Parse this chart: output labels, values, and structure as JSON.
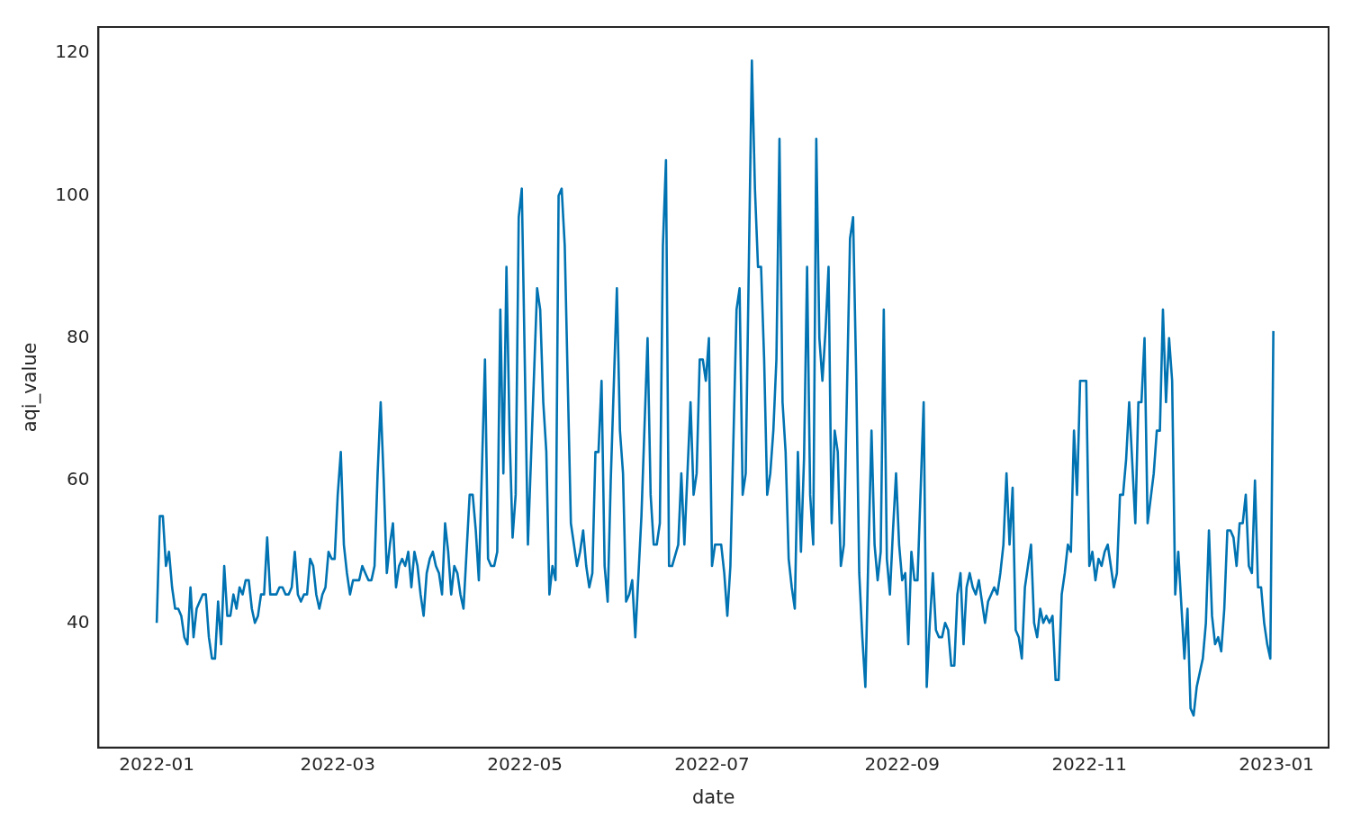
{
  "chart_data": {
    "type": "line",
    "xlabel": "date",
    "ylabel": "aqi_value",
    "x": [
      "2022-01-01",
      "2022-01-02",
      "2022-01-03",
      "2022-01-04",
      "2022-01-05",
      "2022-01-06",
      "2022-01-07",
      "2022-01-08",
      "2022-01-09",
      "2022-01-10",
      "2022-01-11",
      "2022-01-12",
      "2022-01-13",
      "2022-01-14",
      "2022-01-15",
      "2022-01-16",
      "2022-01-17",
      "2022-01-18",
      "2022-01-19",
      "2022-01-20",
      "2022-01-21",
      "2022-01-22",
      "2022-01-23",
      "2022-01-24",
      "2022-01-25",
      "2022-01-26",
      "2022-01-27",
      "2022-01-28",
      "2022-01-29",
      "2022-01-30",
      "2022-01-31",
      "2022-02-01",
      "2022-02-02",
      "2022-02-03",
      "2022-02-04",
      "2022-02-05",
      "2022-02-06",
      "2022-02-07",
      "2022-02-08",
      "2022-02-09",
      "2022-02-10",
      "2022-02-11",
      "2022-02-12",
      "2022-02-13",
      "2022-02-14",
      "2022-02-15",
      "2022-02-16",
      "2022-02-17",
      "2022-02-18",
      "2022-02-19",
      "2022-02-20",
      "2022-02-21",
      "2022-02-22",
      "2022-02-23",
      "2022-02-24",
      "2022-02-25",
      "2022-02-26",
      "2022-02-27",
      "2022-02-28",
      "2022-03-01",
      "2022-03-02",
      "2022-03-03",
      "2022-03-04",
      "2022-03-05",
      "2022-03-06",
      "2022-03-07",
      "2022-03-08",
      "2022-03-09",
      "2022-03-10",
      "2022-03-11",
      "2022-03-12",
      "2022-03-13",
      "2022-03-14",
      "2022-03-15",
      "2022-03-16",
      "2022-03-17",
      "2022-03-18",
      "2022-03-19",
      "2022-03-20",
      "2022-03-21",
      "2022-03-22",
      "2022-03-23",
      "2022-03-24",
      "2022-03-25",
      "2022-03-26",
      "2022-03-27",
      "2022-03-28",
      "2022-03-29",
      "2022-03-30",
      "2022-03-31",
      "2022-04-01",
      "2022-04-02",
      "2022-04-03",
      "2022-04-04",
      "2022-04-05",
      "2022-04-06",
      "2022-04-07",
      "2022-04-08",
      "2022-04-09",
      "2022-04-10",
      "2022-04-11",
      "2022-04-12",
      "2022-04-13",
      "2022-04-14",
      "2022-04-15",
      "2022-04-16",
      "2022-04-18",
      "2022-04-19",
      "2022-04-20",
      "2022-04-21",
      "2022-04-22",
      "2022-04-23",
      "2022-04-24",
      "2022-04-25",
      "2022-04-26",
      "2022-04-27",
      "2022-04-28",
      "2022-04-29",
      "2022-04-30",
      "2022-05-02",
      "2022-05-05",
      "2022-05-06",
      "2022-05-07",
      "2022-05-08",
      "2022-05-09",
      "2022-05-10",
      "2022-05-11",
      "2022-05-12",
      "2022-05-13",
      "2022-05-14",
      "2022-05-16",
      "2022-05-18",
      "2022-05-19",
      "2022-05-20",
      "2022-05-21",
      "2022-05-22",
      "2022-05-23",
      "2022-05-24",
      "2022-05-25",
      "2022-05-26",
      "2022-05-27",
      "2022-05-28",
      "2022-05-29",
      "2022-05-31",
      "2022-06-01",
      "2022-06-02",
      "2022-06-03",
      "2022-06-04",
      "2022-06-05",
      "2022-06-06",
      "2022-06-08",
      "2022-06-10",
      "2022-06-11",
      "2022-06-12",
      "2022-06-13",
      "2022-06-14",
      "2022-06-15",
      "2022-06-16",
      "2022-06-17",
      "2022-06-18",
      "2022-06-20",
      "2022-06-21",
      "2022-06-22",
      "2022-06-24",
      "2022-06-25",
      "2022-06-26",
      "2022-06-27",
      "2022-06-28",
      "2022-06-29",
      "2022-06-30",
      "2022-07-01",
      "2022-07-02",
      "2022-07-04",
      "2022-07-05",
      "2022-07-06",
      "2022-07-07",
      "2022-07-09",
      "2022-07-10",
      "2022-07-11",
      "2022-07-12",
      "2022-07-14",
      "2022-07-15",
      "2022-07-16",
      "2022-07-17",
      "2022-07-18",
      "2022-07-19",
      "2022-07-20",
      "2022-07-21",
      "2022-07-22",
      "2022-07-23",
      "2022-07-24",
      "2022-07-25",
      "2022-07-26",
      "2022-07-27",
      "2022-07-28",
      "2022-07-29",
      "2022-07-30",
      "2022-07-31",
      "2022-08-01",
      "2022-08-02",
      "2022-08-03",
      "2022-08-04",
      "2022-08-05",
      "2022-08-06",
      "2022-08-07",
      "2022-08-08",
      "2022-08-09",
      "2022-08-10",
      "2022-08-11",
      "2022-08-12",
      "2022-08-13",
      "2022-08-15",
      "2022-08-16",
      "2022-08-17",
      "2022-08-18",
      "2022-08-19",
      "2022-08-20",
      "2022-08-21",
      "2022-08-22",
      "2022-08-23",
      "2022-08-24",
      "2022-08-25",
      "2022-08-26",
      "2022-08-27",
      "2022-08-28",
      "2022-08-29",
      "2022-08-30",
      "2022-08-31",
      "2022-09-01",
      "2022-09-02",
      "2022-09-03",
      "2022-09-04",
      "2022-09-05",
      "2022-09-06",
      "2022-09-08",
      "2022-09-09",
      "2022-09-10",
      "2022-09-11",
      "2022-09-12",
      "2022-09-13",
      "2022-09-14",
      "2022-09-15",
      "2022-09-16",
      "2022-09-17",
      "2022-09-18",
      "2022-09-19",
      "2022-09-20",
      "2022-09-21",
      "2022-09-22",
      "2022-09-23",
      "2022-09-24",
      "2022-09-25",
      "2022-09-26",
      "2022-09-27",
      "2022-09-28",
      "2022-09-29",
      "2022-09-30",
      "2022-10-01",
      "2022-10-02",
      "2022-10-03",
      "2022-10-04",
      "2022-10-05",
      "2022-10-06",
      "2022-10-07",
      "2022-10-08",
      "2022-10-09",
      "2022-10-10",
      "2022-10-11",
      "2022-10-12",
      "2022-10-13",
      "2022-10-14",
      "2022-10-15",
      "2022-10-16",
      "2022-10-17",
      "2022-10-18",
      "2022-10-19",
      "2022-10-20",
      "2022-10-21",
      "2022-10-22",
      "2022-10-23",
      "2022-10-24",
      "2022-10-25",
      "2022-10-26",
      "2022-10-27",
      "2022-10-28",
      "2022-10-29",
      "2022-10-31",
      "2022-11-01",
      "2022-11-02",
      "2022-11-03",
      "2022-11-04",
      "2022-11-05",
      "2022-11-06",
      "2022-11-07",
      "2022-11-08",
      "2022-11-09",
      "2022-11-10",
      "2022-11-11",
      "2022-11-12",
      "2022-11-13",
      "2022-11-14",
      "2022-11-16",
      "2022-11-17",
      "2022-11-18",
      "2022-11-19",
      "2022-11-20",
      "2022-11-22",
      "2022-11-23",
      "2022-11-24",
      "2022-11-25",
      "2022-11-26",
      "2022-11-27",
      "2022-11-28",
      "2022-11-29",
      "2022-11-30",
      "2022-12-02",
      "2022-12-03",
      "2022-12-04",
      "2022-12-05",
      "2022-12-06",
      "2022-12-08",
      "2022-12-09",
      "2022-12-10",
      "2022-12-11",
      "2022-12-12",
      "2022-12-13",
      "2022-12-14",
      "2022-12-15",
      "2022-12-16",
      "2022-12-17",
      "2022-12-18",
      "2022-12-19",
      "2022-12-20",
      "2022-12-21",
      "2022-12-22",
      "2022-12-23",
      "2022-12-24",
      "2022-12-25",
      "2022-12-26",
      "2022-12-27",
      "2022-12-28",
      "2022-12-29",
      "2022-12-30",
      "2022-12-31"
    ],
    "series": [
      {
        "color": "#0173b2",
        "values": [
          40,
          55,
          55,
          48,
          50,
          45,
          42,
          42,
          41,
          38,
          37,
          45,
          38,
          42,
          43,
          44,
          44,
          38,
          35,
          35,
          43,
          37,
          48,
          41,
          41,
          44,
          42,
          45,
          44,
          46,
          46,
          42,
          40,
          41,
          44,
          44,
          52,
          44,
          44,
          44,
          45,
          45,
          44,
          44,
          45,
          50,
          44,
          43,
          44,
          44,
          49,
          48,
          44,
          42,
          44,
          45,
          50,
          49,
          49,
          58,
          64,
          51,
          47,
          44,
          46,
          46,
          46,
          48,
          47,
          46,
          46,
          48,
          61,
          71,
          60,
          47,
          51,
          54,
          45,
          48,
          49,
          48,
          50,
          45,
          50,
          48,
          44,
          41,
          47,
          49,
          50,
          48,
          47,
          44,
          54,
          50,
          44,
          48,
          47,
          44,
          42,
          50,
          58,
          58,
          53,
          46,
          77,
          49,
          48,
          48,
          50,
          84,
          61,
          90,
          67,
          52,
          58,
          97,
          101,
          51,
          87,
          84,
          71,
          64,
          44,
          48,
          46,
          100,
          101,
          93,
          54,
          48,
          50,
          53,
          48,
          45,
          47,
          64,
          64,
          74,
          48,
          43,
          60,
          87,
          67,
          61,
          43,
          44,
          46,
          38,
          55,
          80,
          58,
          51,
          51,
          54,
          93,
          105,
          48,
          48,
          51,
          61,
          51,
          71,
          58,
          61,
          77,
          77,
          74,
          80,
          48,
          51,
          51,
          47,
          41,
          48,
          84,
          87,
          58,
          61,
          119,
          101,
          90,
          90,
          77,
          58,
          61,
          67,
          77,
          108,
          71,
          64,
          49,
          45,
          42,
          64,
          50,
          63,
          90,
          58,
          51,
          108,
          80,
          74,
          81,
          90,
          54,
          67,
          64,
          48,
          51,
          94,
          97,
          75,
          47,
          38,
          31,
          50,
          67,
          51,
          46,
          50,
          84,
          49,
          44,
          53,
          61,
          51,
          46,
          47,
          37,
          50,
          46,
          46,
          71,
          31,
          40,
          47,
          39,
          38,
          38,
          40,
          39,
          34,
          34,
          44,
          47,
          37,
          45,
          47,
          45,
          44,
          46,
          43,
          40,
          43,
          44,
          45,
          44,
          47,
          51,
          61,
          51,
          59,
          39,
          38,
          35,
          45,
          48,
          51,
          40,
          38,
          42,
          40,
          41,
          40,
          41,
          32,
          32,
          44,
          47,
          51,
          50,
          67,
          58,
          74,
          74,
          48,
          50,
          46,
          49,
          48,
          50,
          51,
          48,
          45,
          47,
          58,
          58,
          63,
          71,
          54,
          71,
          71,
          80,
          54,
          61,
          67,
          67,
          84,
          71,
          80,
          74,
          44,
          50,
          35,
          42,
          28,
          27,
          31,
          35,
          40,
          53,
          41,
          37,
          38,
          36,
          42,
          53,
          53,
          52,
          48,
          54,
          54,
          58,
          48,
          47,
          60,
          45,
          45,
          40,
          37,
          35,
          81
        ]
      }
    ],
    "xlim": [
      "2021-12-13",
      "2023-01-18"
    ],
    "xticks": [
      "2022-01",
      "2022-03",
      "2022-05",
      "2022-07",
      "2022-09",
      "2022-11",
      "2023-01"
    ],
    "ylim": [
      22.5,
      123.7
    ],
    "yticks": [
      40,
      60,
      80,
      100,
      120
    ],
    "grid": false,
    "legend": false,
    "marker": "none",
    "line_style": "solid"
  }
}
